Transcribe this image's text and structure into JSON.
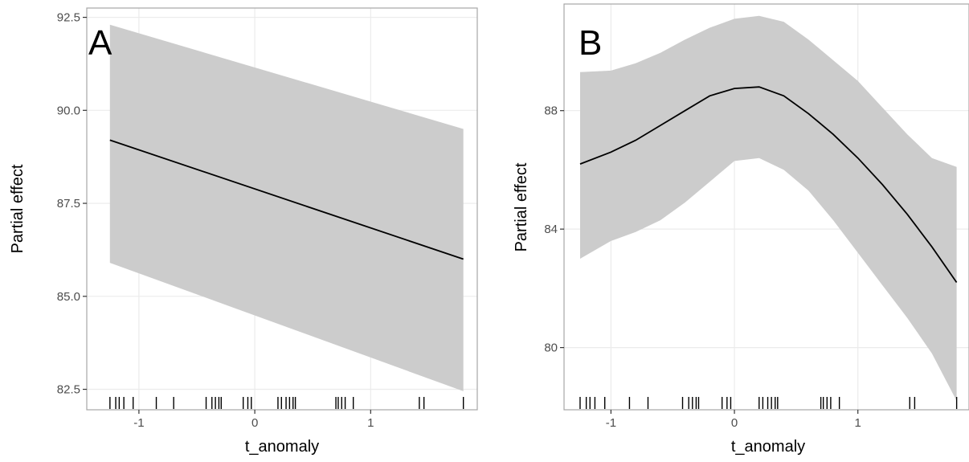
{
  "chart_data": [
    {
      "panel": "A",
      "type": "line",
      "xlabel": "t_anomaly",
      "ylabel": "Partial effect",
      "xlim": [
        -1.45,
        1.92
      ],
      "ylim": [
        81.95,
        92.75
      ],
      "xticks": [
        -1,
        0,
        1
      ],
      "xtick_labels": [
        "-1",
        "0",
        "1"
      ],
      "yticks": [
        82.5,
        85.0,
        87.5,
        90.0,
        92.5
      ],
      "ytick_labels": [
        "82.5",
        "85.0",
        "87.5",
        "90.0",
        "92.5"
      ],
      "grid": true,
      "series": [
        {
          "x": [
            -1.25,
            1.8
          ],
          "y": [
            89.2,
            86.0
          ],
          "lower": [
            85.9,
            82.45
          ],
          "upper": [
            92.3,
            89.5
          ]
        }
      ],
      "rug": [
        -1.25,
        -1.2,
        -1.17,
        -1.13,
        -1.05,
        -0.85,
        -0.7,
        -0.42,
        -0.37,
        -0.34,
        -0.31,
        -0.29,
        -0.1,
        -0.06,
        -0.03,
        0.2,
        0.23,
        0.27,
        0.3,
        0.33,
        0.35,
        0.7,
        0.72,
        0.75,
        0.78,
        0.85,
        1.42,
        1.46,
        1.8
      ],
      "colors": {
        "line": "#000000",
        "ribbon": "#cccccc",
        "grid": "#ebebeb",
        "border": "#a6a6a6"
      }
    },
    {
      "panel": "B",
      "type": "line",
      "xlabel": "t_anomaly",
      "ylabel": "Partial effect",
      "xlim": [
        -1.38,
        1.9
      ],
      "ylim": [
        77.9,
        91.6
      ],
      "xticks": [
        -1,
        0,
        1
      ],
      "xtick_labels": [
        "-1",
        "0",
        "1"
      ],
      "yticks": [
        80,
        84,
        88
      ],
      "ytick_labels": [
        "80",
        "84",
        "88"
      ],
      "grid": true,
      "series": [
        {
          "x": [
            -1.25,
            -1.0,
            -0.8,
            -0.6,
            -0.4,
            -0.2,
            0.0,
            0.2,
            0.4,
            0.6,
            0.8,
            1.0,
            1.2,
            1.4,
            1.6,
            1.8
          ],
          "y": [
            86.2,
            86.6,
            87.0,
            87.5,
            88.0,
            88.5,
            88.75,
            88.8,
            88.5,
            87.9,
            87.2,
            86.4,
            85.5,
            84.5,
            83.4,
            82.2
          ],
          "lower": [
            83.0,
            83.6,
            83.9,
            84.3,
            84.9,
            85.6,
            86.3,
            86.4,
            86.0,
            85.3,
            84.3,
            83.2,
            82.1,
            81.0,
            79.8,
            78.2
          ],
          "upper": [
            89.3,
            89.35,
            89.6,
            89.95,
            90.4,
            90.8,
            91.1,
            91.2,
            91.0,
            90.4,
            89.7,
            89.0,
            88.1,
            87.2,
            86.4,
            86.1
          ]
        }
      ],
      "rug": [
        -1.25,
        -1.2,
        -1.17,
        -1.13,
        -1.05,
        -0.85,
        -0.7,
        -0.42,
        -0.37,
        -0.34,
        -0.31,
        -0.29,
        -0.1,
        -0.06,
        -0.03,
        0.2,
        0.23,
        0.27,
        0.3,
        0.33,
        0.35,
        0.7,
        0.72,
        0.75,
        0.78,
        0.85,
        1.42,
        1.46,
        1.8
      ],
      "colors": {
        "line": "#000000",
        "ribbon": "#cccccc",
        "grid": "#ebebeb",
        "border": "#a6a6a6"
      }
    }
  ]
}
